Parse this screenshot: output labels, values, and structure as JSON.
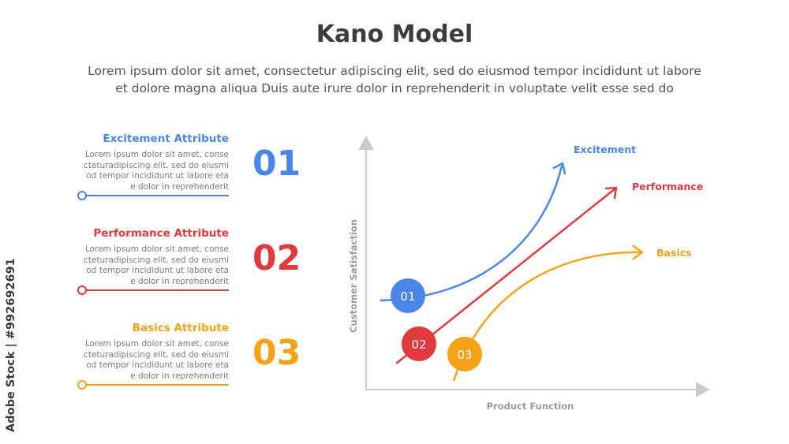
{
  "header": {
    "title": "Kano Model",
    "subtitle_line1": "Lorem ipsum dolor sit amet, consectetur adipiscing elit, sed do eiusmod tempor incididunt ut labore",
    "subtitle_line2": "et dolore magna aliqua Duis aute irure dolor in reprehenderit in voluptate velit esse sed do"
  },
  "attributes": [
    {
      "number": "01",
      "name": "Excitement Attribute",
      "color": "#4a86e8",
      "desc": [
        "Lorem ipsum dolor sit amet, conse",
        "cteturadipiscing elit, sed do eiusmi",
        "od tempor incididunt ut labore eta",
        "e dolor in reprehenderit"
      ]
    },
    {
      "number": "02",
      "name": "Performance Attribute",
      "color": "#e03a3e",
      "desc": [
        "Lorem ipsum dolor sit amet, conse",
        "cteturadipiscing elit, sed do eiusmi",
        "od tempor incididunt ut labore eta",
        "e dolor in reprehenderit"
      ]
    },
    {
      "number": "03",
      "name": "Basics Attribute",
      "color": "#f5a21b",
      "desc": [
        "Lorem ipsum dolor sit amet, conse",
        "cteturadipiscing elit, sed do eiusmi",
        "od tempor incididunt ut labore eta",
        "e dolor in reprehenderit"
      ]
    }
  ],
  "diagram": {
    "y_axis_label": "Customer Satisfaction",
    "x_axis_label": "Product Function",
    "axis_color": "#cccccc",
    "curves": [
      {
        "label": "Excitement",
        "marker": "01",
        "color": "#4a86e8"
      },
      {
        "label": "Performance",
        "marker": "02",
        "color": "#e03a3e"
      },
      {
        "label": "Basics",
        "marker": "03",
        "color": "#f5a21b"
      }
    ]
  },
  "watermark": "Adobe Stock | #992692691"
}
